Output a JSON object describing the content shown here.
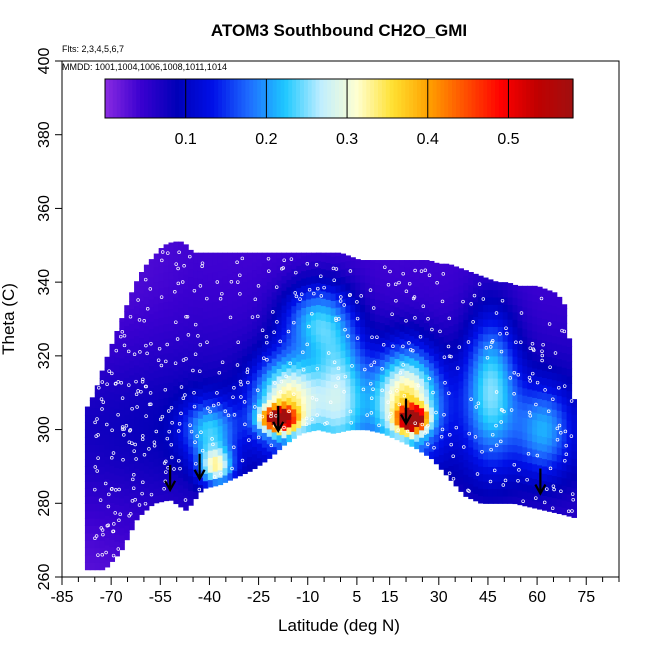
{
  "chart_data": {
    "type": "heatmap",
    "title": "ATOM3 Southbound CH2O_GMI",
    "flights_note": "Flts: 2,3,4,5,6,7",
    "dates_note": "MMDD: 1001,1004,1006,1008,1011,1014",
    "xlabel": "Latitude (deg N)",
    "ylabel": "Theta (C)",
    "xlim": [
      -85,
      85
    ],
    "ylim": [
      260,
      400
    ],
    "x_ticks": [
      -85,
      -70,
      -55,
      -40,
      -25,
      -10,
      5,
      15,
      30,
      45,
      60,
      75
    ],
    "y_ticks": [
      260,
      280,
      300,
      320,
      340,
      360,
      380,
      400
    ],
    "colorbar": {
      "range": [
        0,
        0.58
      ],
      "ticks": [
        0.1,
        0.2,
        0.3,
        0.4,
        0.5
      ],
      "colors": [
        "#8a2be2",
        "#3a00d0",
        "#0000b8",
        "#0010e8",
        "#1e6cff",
        "#1ec8ff",
        "#bfeeff",
        "#ffffd0",
        "#ffe030",
        "#ffa000",
        "#ff5000",
        "#ff0000",
        "#c00000",
        "#a01010"
      ]
    },
    "tropopause_arrows_lat": [
      -52,
      -43,
      -19,
      20,
      61
    ],
    "tropopause_arrows_theta": [
      285,
      288,
      301,
      303,
      284
    ],
    "lower_boundary": {
      "lat": [
        -72,
        -67,
        -62,
        -57,
        -52,
        -47,
        -42,
        -37,
        -32,
        -27,
        -22,
        -17,
        -12,
        -7,
        -2,
        3,
        8,
        13,
        18,
        23,
        28,
        33,
        38,
        43,
        48,
        53,
        58,
        63,
        68,
        72
      ],
      "theta": [
        262,
        267,
        276,
        280,
        281,
        278,
        284,
        285,
        287,
        289,
        292,
        296,
        299,
        300,
        299,
        300,
        300,
        299,
        297,
        295,
        292,
        287,
        282,
        280,
        280,
        280,
        279,
        278,
        277,
        276
      ]
    },
    "upper_boundary": {
      "lat": [
        -78,
        -75,
        -72,
        -69,
        -66,
        -63,
        -60,
        -57,
        -54,
        -51,
        -48,
        -45,
        -42,
        -39,
        -36,
        -33,
        -30,
        -27,
        -24,
        -21,
        -18,
        -15,
        -12,
        -9,
        -6,
        -3,
        0,
        3,
        6,
        9,
        12,
        15,
        18,
        21,
        24,
        27,
        30,
        33,
        36,
        39,
        42,
        45,
        48,
        51,
        54,
        57,
        60,
        63,
        66,
        69,
        72
      ],
      "theta": [
        305,
        310,
        318,
        325,
        332,
        339,
        344,
        347,
        350,
        351,
        351,
        348,
        348,
        348,
        348,
        348,
        348,
        348,
        348,
        348,
        348,
        348,
        348,
        348,
        348,
        348,
        348,
        347,
        346,
        346,
        346,
        346,
        346,
        346,
        346,
        346,
        345,
        345,
        344,
        343,
        342,
        341,
        340,
        340,
        339,
        339,
        339,
        338,
        337,
        333,
        300
      ]
    },
    "field_features": [
      {
        "lat": -19,
        "theta": 303,
        "value": 0.42,
        "spread_lat": 5,
        "spread_theta": 3
      },
      {
        "lat": 22,
        "theta": 303,
        "value": 0.48,
        "spread_lat": 4,
        "spread_theta": 3
      },
      {
        "lat": -16,
        "theta": 308,
        "value": 0.25,
        "spread_lat": 10,
        "spread_theta": 12
      },
      {
        "lat": 20,
        "theta": 308,
        "value": 0.27,
        "spread_lat": 10,
        "spread_theta": 14
      },
      {
        "lat": -38,
        "theta": 290,
        "value": 0.22,
        "spread_lat": 5,
        "spread_theta": 5
      },
      {
        "lat": 0,
        "theta": 310,
        "value": 0.17,
        "spread_lat": 8,
        "spread_theta": 20
      },
      {
        "lat": 46,
        "theta": 312,
        "value": 0.17,
        "spread_lat": 8,
        "spread_theta": 20
      },
      {
        "lat": -8,
        "theta": 330,
        "value": 0.15,
        "spread_lat": 10,
        "spread_theta": 10
      },
      {
        "lat": 62,
        "theta": 300,
        "value": 0.12,
        "spread_lat": 8,
        "spread_theta": 12
      },
      {
        "lat": -40,
        "theta": 300,
        "value": 0.14,
        "spread_lat": 8,
        "spread_theta": 8
      }
    ]
  }
}
